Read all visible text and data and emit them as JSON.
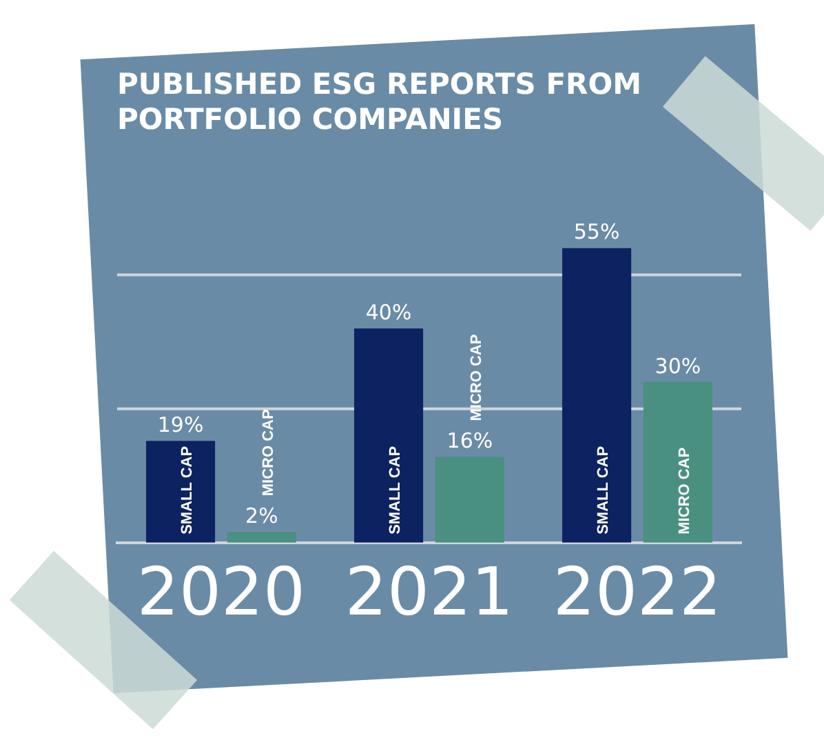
{
  "chart_data": {
    "type": "bar",
    "title": [
      "PUBLISHED ESG REPORTS FROM",
      "PORTFOLIO COMPANIES"
    ],
    "categories": [
      "2020",
      "2021",
      "2022"
    ],
    "series": [
      {
        "name": "SMALL CAP",
        "color": "#0d2260",
        "values": [
          19,
          40,
          55
        ],
        "value_labels": [
          "19%",
          "40%",
          "55%"
        ]
      },
      {
        "name": "MICRO CAP",
        "color": "#4a9080",
        "values": [
          2,
          16,
          30
        ],
        "value_labels": [
          "2%",
          "16%",
          "30%"
        ]
      }
    ],
    "ref_lines": [
      {
        "axis": "y",
        "value": 25,
        "color": "#cfd6dc"
      },
      {
        "axis": "y",
        "value": 50,
        "color": "#cfd6dc"
      }
    ],
    "legend": false
  }
}
